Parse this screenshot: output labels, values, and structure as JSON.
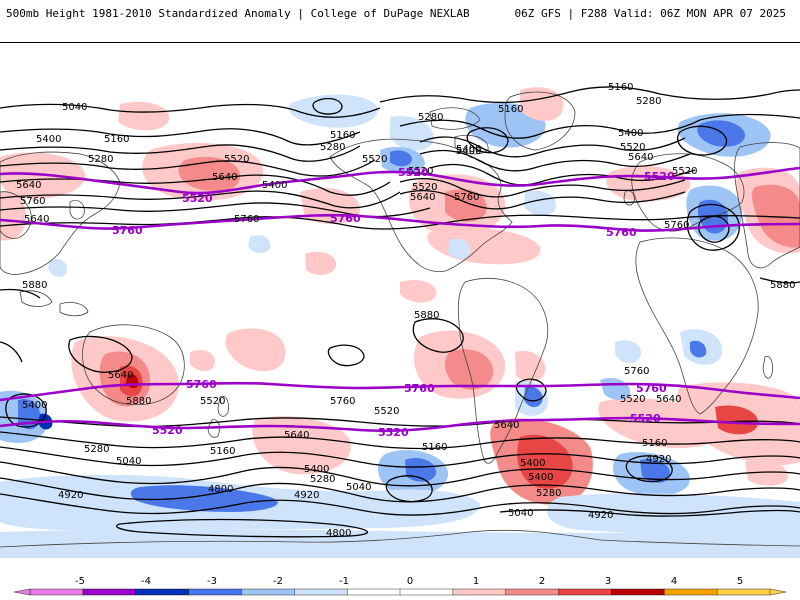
{
  "header": {
    "title_left": "500mb Height 1981-2010 Standardized Anomaly | College of DuPage NEXLAB",
    "title_right": "06Z GFS | F288 Valid: 06Z MON APR 07 2025"
  },
  "colors": {
    "contour": "#000000",
    "highlight_contour": "#9a00c8",
    "coast": "#444444"
  },
  "colorbar": {
    "ticks": [
      "-5",
      "-4",
      "-3",
      "-2",
      "-1",
      "0",
      "1",
      "2",
      "3",
      "4",
      "5"
    ],
    "colors": [
      "#e87de8",
      "#9a00c8",
      "#0030b8",
      "#4a78e8",
      "#9ec4f5",
      "#cfe3fb",
      "#ffffff",
      "#ffffff",
      "#ffc9c9",
      "#f58a8a",
      "#e84545",
      "#b80000",
      "#f5a100",
      "#ffd24a"
    ]
  },
  "contour_labels": [
    "5040",
    "5400",
    "5160",
    "5280",
    "5640",
    "5760",
    "5520",
    "5640",
    "5400",
    "5160",
    "5280",
    "5520",
    "5400",
    "5280",
    "5160",
    "5400",
    "5520",
    "5640",
    "5280",
    "5160",
    "5400",
    "5520",
    "5640",
    "5760",
    "5760",
    "5760",
    "5880",
    "5880",
    "5880",
    "5880",
    "5400",
    "5760",
    "5520",
    "5640",
    "5280",
    "5040",
    "5160",
    "5400",
    "5280",
    "4920",
    "4800",
    "4920",
    "5040",
    "5160",
    "5400",
    "5280",
    "5040",
    "4920",
    "5760",
    "5640",
    "5520",
    "5640",
    "5160",
    "4920",
    "4800",
    "5520",
    "5400",
    "5640",
    "5520",
    "5640",
    "5520"
  ],
  "highlight_labels": [
    "5520",
    "5520",
    "5520",
    "5760",
    "5760",
    "5760",
    "5760",
    "5760",
    "5760",
    "5520",
    "5520",
    "5520"
  ]
}
